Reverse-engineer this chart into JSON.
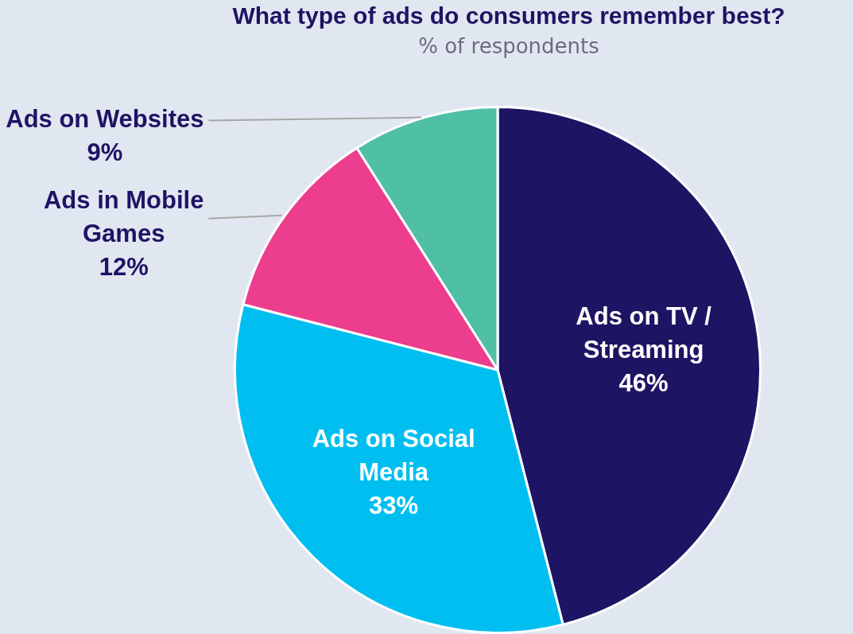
{
  "chart_data": {
    "type": "pie",
    "title": "What type of ads do consumers remember best?",
    "subtitle": "% of respondents",
    "categories": [
      "Ads on TV / Streaming",
      "Ads on Social Media",
      "Ads in Mobile Games",
      "Ads on Websites"
    ],
    "values": [
      46,
      33,
      12,
      9
    ],
    "value_labels": [
      "46%",
      "33%",
      "12%",
      "9%"
    ],
    "colors": [
      "#1e1464",
      "#00bff0",
      "#ec3d8e",
      "#4fbfa6"
    ],
    "legend": false
  }
}
